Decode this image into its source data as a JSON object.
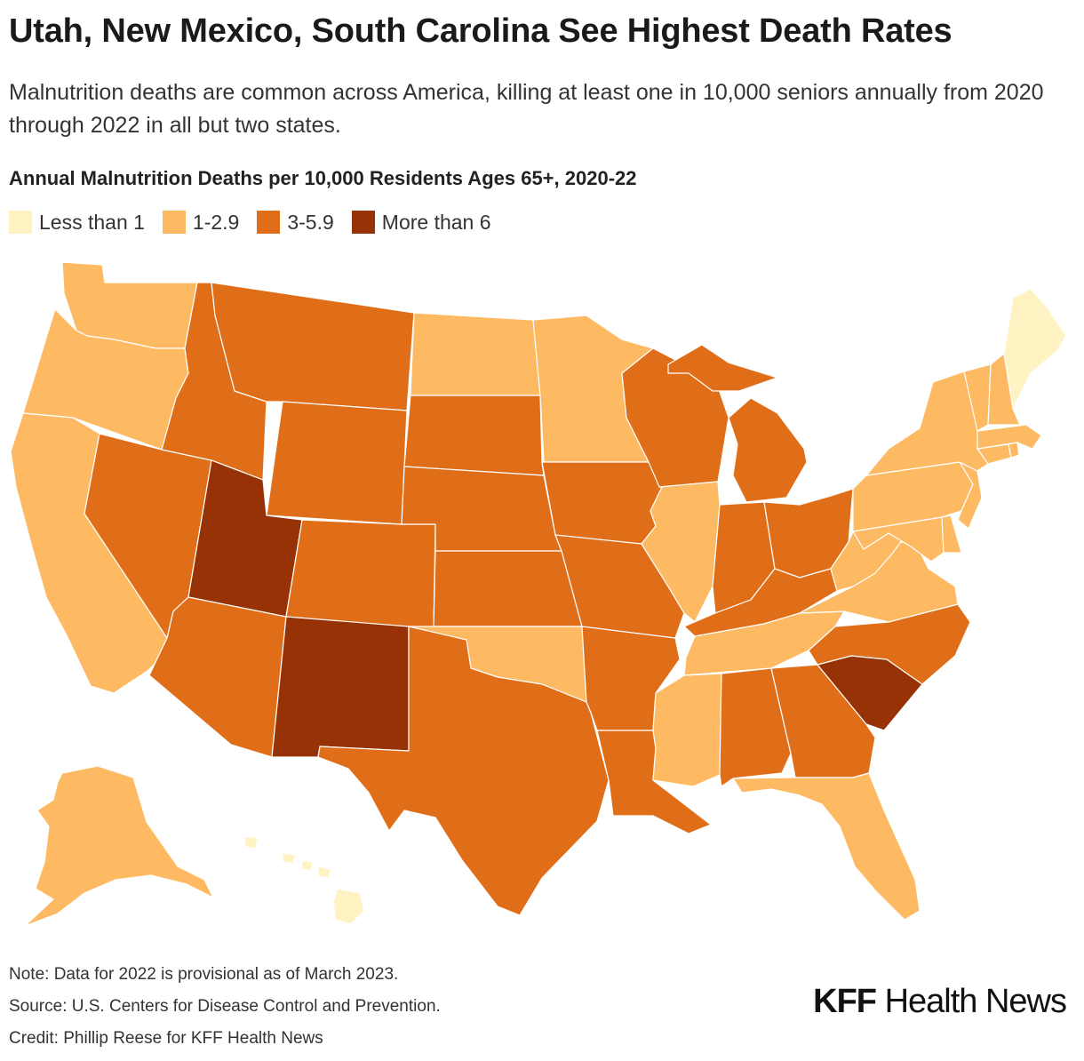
{
  "title": "Utah, New Mexico, South Carolina See Highest Death Rates",
  "subtitle": "Malnutrition deaths are common across America, killing at least one in 10,000 seniors annually from 2020 through 2022 in all but two states.",
  "chart_data": {
    "type": "choropleth",
    "title": "Annual Malnutrition Deaths per 10,000 Residents Ages 65+, 2020-22",
    "legend": [
      {
        "key": "lt1",
        "label": "Less than 1",
        "color": "#fff3c4"
      },
      {
        "key": "b1",
        "label": "1-2.9",
        "color": "#fdba62"
      },
      {
        "key": "b3",
        "label": "3-5.9",
        "color": "#e06e19"
      },
      {
        "key": "b6",
        "label": "More than 6",
        "color": "#963205"
      }
    ],
    "states": {
      "AL": "b3",
      "AK": "b1",
      "AZ": "b3",
      "AR": "b3",
      "CA": "b1",
      "CO": "b3",
      "CT": "b1",
      "DE": "b1",
      "DC": "b1",
      "FL": "b1",
      "GA": "b3",
      "HI": "lt1",
      "ID": "b3",
      "IL": "b1",
      "IN": "b3",
      "IA": "b3",
      "KS": "b3",
      "KY": "b3",
      "LA": "b3",
      "ME": "lt1",
      "MD": "b1",
      "MA": "b1",
      "MI": "b3",
      "MN": "b1",
      "MS": "b1",
      "MO": "b3",
      "MT": "b3",
      "NE": "b3",
      "NV": "b3",
      "NH": "b1",
      "NJ": "b1",
      "NM": "b6",
      "NY": "b1",
      "NC": "b3",
      "ND": "b1",
      "OH": "b3",
      "OK": "b1",
      "OR": "b1",
      "PA": "b1",
      "RI": "b1",
      "SC": "b6",
      "SD": "b3",
      "TN": "b1",
      "TX": "b3",
      "UT": "b6",
      "VT": "b1",
      "VA": "b1",
      "WA": "b1",
      "WV": "b1",
      "WI": "b3",
      "WY": "b3"
    }
  },
  "footer": {
    "note": "Note: Data for 2022 is provisional as of March 2023.",
    "source": "Source: U.S. Centers for Disease Control and Prevention.",
    "credit": "Credit: Phillip Reese for KFF Health News"
  },
  "logo": {
    "kff": "KFF",
    "rest": " Health News"
  }
}
